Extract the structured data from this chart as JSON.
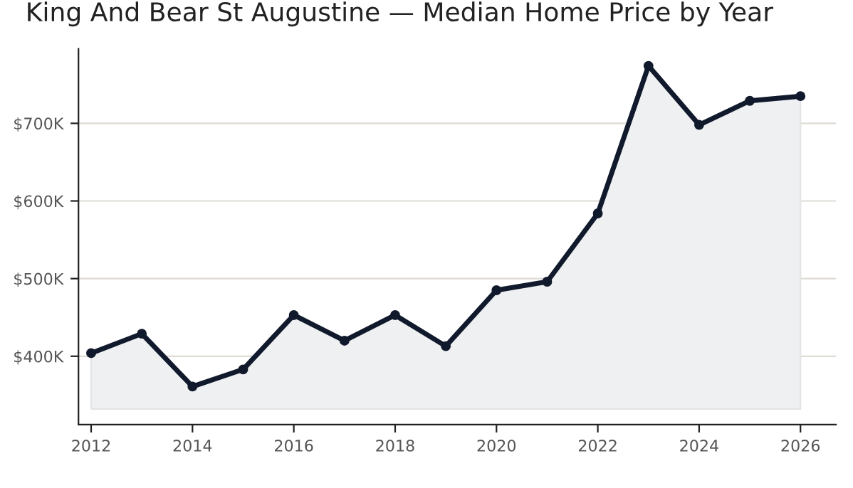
{
  "chart_data": {
    "type": "area",
    "title": "King And Bear St Augustine — Median Home Price by Year",
    "x": [
      2012,
      2013,
      2014,
      2015,
      2016,
      2017,
      2018,
      2019,
      2020,
      2021,
      2022,
      2023,
      2024,
      2025,
      2026
    ],
    "series": [
      {
        "color": "#111a2c",
        "values": [
          404,
          429,
          361,
          383,
          453,
          420,
          453,
          413,
          485,
          496,
          584,
          774,
          698,
          729,
          735
        ]
      }
    ],
    "xlim": [
      2011.75,
      2026.7
    ],
    "xticks": [
      2012,
      2014,
      2016,
      2018,
      2020,
      2022,
      2024,
      2026
    ],
    "ylim": [
      312,
      796
    ],
    "yticks": [
      {
        "value": 400,
        "label": "$400K"
      },
      {
        "value": 500,
        "label": "$500K"
      },
      {
        "value": 600,
        "label": "$600K"
      },
      {
        "value": 700,
        "label": "$700K"
      }
    ],
    "grid": "y",
    "marker": "circle",
    "line_style": "solid",
    "legend": false
  }
}
